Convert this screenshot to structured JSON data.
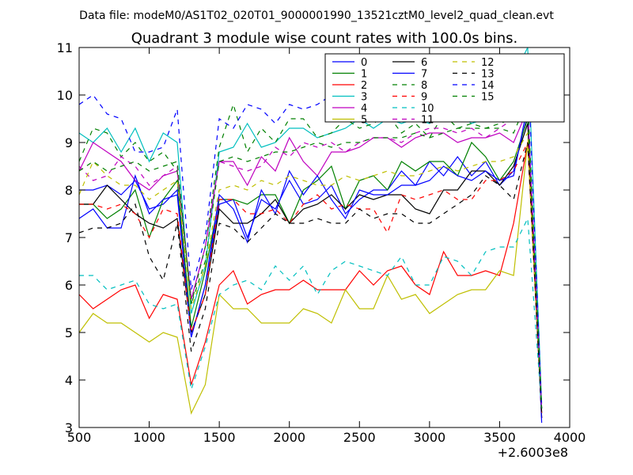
{
  "suptitle": "Data file: modeM0/AS1T02_020T01_9000001990_13521cztM0_level2_quad_clean.evt",
  "chart_data": {
    "type": "line",
    "title": "Quadrant 3 module wise count rates with 100.0s bins.",
    "xlabel": "",
    "ylabel": "",
    "x_offset_label": "+2.6003e8",
    "xlim": [
      500,
      4000
    ],
    "ylim": [
      3,
      11
    ],
    "xticks": [
      500,
      1000,
      1500,
      2000,
      2500,
      3000,
      3500,
      4000
    ],
    "yticks": [
      3,
      4,
      5,
      6,
      7,
      8,
      9,
      10,
      11
    ],
    "grid": false,
    "legend_position": "top-right",
    "x": [
      500,
      600,
      700,
      800,
      900,
      1000,
      1100,
      1200,
      1300,
      1400,
      1500,
      1600,
      1700,
      1800,
      1900,
      2000,
      2100,
      2200,
      2300,
      2400,
      2500,
      2600,
      2700,
      2800,
      2900,
      3000,
      3100,
      3200,
      3300,
      3400,
      3500,
      3600,
      3700,
      3800
    ],
    "series": [
      {
        "name": "0",
        "color": "#0000ff",
        "style": "solid",
        "values": [
          8.0,
          8.0,
          8.1,
          7.9,
          8.2,
          7.6,
          7.7,
          8.0,
          4.9,
          6.0,
          7.7,
          7.8,
          7.0,
          7.8,
          7.6,
          8.2,
          7.7,
          7.8,
          8.1,
          7.5,
          7.8,
          8.0,
          8.0,
          8.4,
          8.1,
          8.6,
          8.3,
          8.7,
          8.3,
          8.6,
          8.1,
          8.4,
          9.6,
          3.2
        ]
      },
      {
        "name": "1",
        "color": "#008000",
        "style": "solid",
        "values": [
          7.7,
          7.7,
          7.4,
          7.6,
          8.0,
          7.0,
          7.8,
          8.2,
          5.1,
          6.3,
          7.8,
          7.8,
          7.7,
          7.9,
          7.9,
          7.3,
          8.0,
          8.2,
          8.5,
          7.6,
          8.2,
          8.3,
          8.0,
          8.6,
          8.4,
          8.6,
          8.6,
          8.3,
          9.0,
          8.7,
          8.2,
          8.6,
          9.5,
          3.3
        ]
      },
      {
        "name": "2",
        "color": "#ff0000",
        "style": "solid",
        "values": [
          5.8,
          5.5,
          5.7,
          5.9,
          6.0,
          5.3,
          5.8,
          5.7,
          3.9,
          4.8,
          6.0,
          6.3,
          5.6,
          5.8,
          5.9,
          5.9,
          6.1,
          5.9,
          5.9,
          5.9,
          6.3,
          6.0,
          6.3,
          6.4,
          6.0,
          5.8,
          6.7,
          6.2,
          6.2,
          6.3,
          6.2,
          7.3,
          9.0,
          3.2
        ]
      },
      {
        "name": "3",
        "color": "#00bfbf",
        "style": "solid",
        "values": [
          9.2,
          9.0,
          9.3,
          8.8,
          9.3,
          8.6,
          9.2,
          9.0,
          5.4,
          6.4,
          8.8,
          8.9,
          9.4,
          8.9,
          9.0,
          9.3,
          9.3,
          9.1,
          9.2,
          9.3,
          9.5,
          9.3,
          9.5,
          9.4,
          9.5,
          9.4,
          9.7,
          9.6,
          9.4,
          9.5,
          9.7,
          10.4,
          11.0,
          3.5
        ]
      },
      {
        "name": "4",
        "color": "#bf00bf",
        "style": "solid",
        "values": [
          8.4,
          9.0,
          8.8,
          8.6,
          8.2,
          8.0,
          8.3,
          8.4,
          5.7,
          6.8,
          8.6,
          8.6,
          8.1,
          8.7,
          8.4,
          9.1,
          8.6,
          8.3,
          8.8,
          8.8,
          8.9,
          9.1,
          9.1,
          8.9,
          9.1,
          9.2,
          9.2,
          9.0,
          9.1,
          9.1,
          9.2,
          9.0,
          9.7,
          3.4
        ]
      },
      {
        "name": "5",
        "color": "#bfbf00",
        "style": "solid",
        "values": [
          5.0,
          5.4,
          5.2,
          5.2,
          5.0,
          4.8,
          5.0,
          4.9,
          3.3,
          3.9,
          5.8,
          5.5,
          5.5,
          5.2,
          5.2,
          5.2,
          5.5,
          5.4,
          5.2,
          5.9,
          5.5,
          5.5,
          6.2,
          5.7,
          5.8,
          5.4,
          5.6,
          5.8,
          5.9,
          5.9,
          6.3,
          6.2,
          9.0,
          3.3
        ]
      },
      {
        "name": "6",
        "color": "#000000",
        "style": "solid",
        "values": [
          7.7,
          7.7,
          8.1,
          7.8,
          7.5,
          7.3,
          7.2,
          7.4,
          5.0,
          5.8,
          7.6,
          7.3,
          7.3,
          7.5,
          7.8,
          7.3,
          7.6,
          7.7,
          7.9,
          7.6,
          7.9,
          7.8,
          7.9,
          7.9,
          7.6,
          7.5,
          8.0,
          8.0,
          8.4,
          8.4,
          8.1,
          8.5,
          9.4,
          3.2
        ]
      },
      {
        "name": "7",
        "color": "#0000ff",
        "style": "solid",
        "values": [
          7.4,
          7.6,
          7.2,
          7.2,
          8.3,
          7.5,
          7.8,
          7.9,
          4.9,
          6.0,
          7.9,
          7.6,
          6.9,
          8.0,
          7.5,
          8.4,
          7.9,
          8.3,
          7.8,
          7.4,
          8.0,
          7.9,
          7.9,
          8.1,
          8.1,
          8.2,
          8.5,
          8.3,
          8.2,
          8.4,
          8.2,
          8.3,
          9.8,
          3.1
        ]
      },
      {
        "name": "8",
        "color": "#008000",
        "style": "dashed",
        "values": [
          8.6,
          9.3,
          9.2,
          8.7,
          9.0,
          8.6,
          8.8,
          8.4,
          5.6,
          6.8,
          8.9,
          9.8,
          8.8,
          9.3,
          9.0,
          9.5,
          9.5,
          9.1,
          9.2,
          9.5,
          9.3,
          9.4,
          9.6,
          9.2,
          9.4,
          9.1,
          9.6,
          9.3,
          9.4,
          9.3,
          9.3,
          9.2,
          9.9,
          3.4
        ]
      },
      {
        "name": "9",
        "color": "#ff0000",
        "style": "dashed",
        "values": [
          7.7,
          7.7,
          7.6,
          7.7,
          7.5,
          7.0,
          7.6,
          7.5,
          5.0,
          5.8,
          7.8,
          7.8,
          7.5,
          7.5,
          7.6,
          7.3,
          7.7,
          7.9,
          7.6,
          7.7,
          7.6,
          7.6,
          7.1,
          7.9,
          7.8,
          7.9,
          8.0,
          7.8,
          7.8,
          8.2,
          8.2,
          8.4,
          9.0,
          3.3
        ]
      },
      {
        "name": "10",
        "color": "#00bfbf",
        "style": "dashed",
        "values": [
          6.2,
          6.2,
          5.9,
          6.0,
          6.1,
          5.6,
          5.5,
          5.6,
          3.8,
          4.7,
          5.8,
          6.0,
          6.1,
          5.9,
          6.4,
          6.1,
          6.4,
          5.8,
          6.3,
          6.5,
          6.4,
          6.3,
          6.2,
          6.6,
          6.0,
          6.0,
          6.6,
          6.5,
          6.2,
          6.7,
          6.8,
          6.8,
          7.4,
          3.4
        ]
      },
      {
        "name": "11",
        "color": "#bf00bf",
        "style": "dashed",
        "values": [
          8.5,
          8.2,
          8.3,
          8.7,
          8.5,
          8.1,
          8.3,
          8.5,
          5.7,
          6.8,
          8.6,
          8.5,
          8.4,
          8.5,
          8.9,
          8.7,
          9.0,
          8.9,
          9.0,
          8.8,
          9.0,
          9.1,
          9.1,
          9.0,
          9.2,
          9.3,
          9.3,
          9.2,
          9.3,
          9.1,
          9.3,
          9.5,
          9.7,
          3.4
        ]
      },
      {
        "name": "12",
        "color": "#bfbf00",
        "style": "dashed",
        "values": [
          7.9,
          8.6,
          8.3,
          8.1,
          8.1,
          7.8,
          8.0,
          8.2,
          5.5,
          6.4,
          8.0,
          8.1,
          8.0,
          8.2,
          8.1,
          8.3,
          8.2,
          8.1,
          8.1,
          8.3,
          8.2,
          8.3,
          8.4,
          8.3,
          8.3,
          8.4,
          8.5,
          8.4,
          8.5,
          8.6,
          8.6,
          8.7,
          9.2,
          3.3
        ]
      },
      {
        "name": "13",
        "color": "#000000",
        "style": "dashed",
        "values": [
          7.1,
          7.2,
          7.2,
          7.3,
          7.7,
          6.6,
          6.1,
          7.3,
          4.6,
          5.5,
          7.3,
          7.2,
          6.9,
          7.2,
          7.5,
          7.3,
          7.3,
          7.4,
          7.3,
          7.3,
          7.6,
          7.4,
          7.5,
          7.5,
          7.3,
          7.3,
          7.5,
          7.7,
          7.9,
          8.3,
          8.1,
          7.8,
          9.0,
          3.3
        ]
      },
      {
        "name": "14",
        "color": "#0000ff",
        "style": "dashed",
        "values": [
          9.8,
          10.0,
          9.6,
          9.5,
          8.8,
          8.8,
          8.9,
          9.7,
          5.9,
          7.0,
          9.5,
          9.3,
          9.8,
          9.7,
          9.4,
          9.8,
          9.7,
          9.8,
          10.0,
          9.9,
          10.0,
          10.2,
          10.0,
          10.3,
          10.2,
          10.0,
          10.4,
          10.2,
          10.1,
          10.4,
          10.4,
          10.6,
          10.8,
          3.4
        ]
      },
      {
        "name": "15",
        "color": "#008000",
        "style": "dashed",
        "values": [
          8.4,
          8.6,
          8.4,
          8.5,
          8.6,
          8.4,
          8.5,
          8.6,
          5.6,
          6.5,
          8.6,
          8.7,
          8.6,
          8.7,
          8.8,
          8.8,
          8.9,
          9.0,
          8.9,
          9.0,
          9.0,
          9.1,
          9.1,
          9.1,
          9.2,
          9.1,
          9.2,
          9.3,
          9.3,
          9.3,
          9.4,
          9.5,
          9.8,
          3.4
        ]
      }
    ]
  }
}
